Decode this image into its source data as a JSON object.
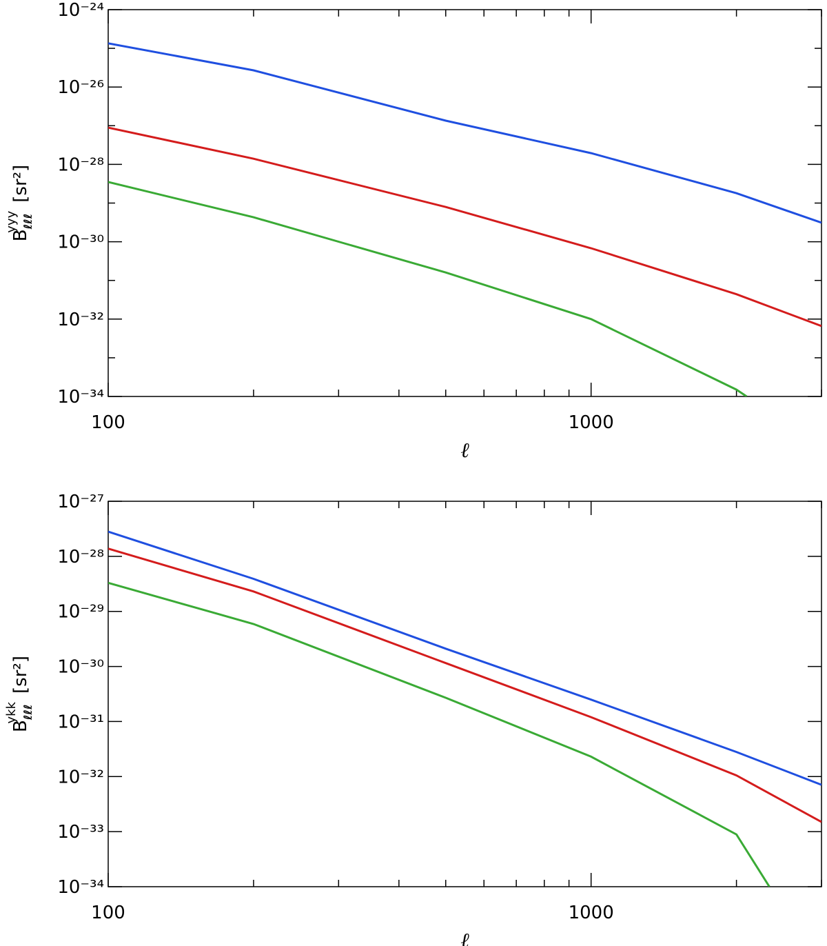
{
  "chart_data": [
    {
      "type": "line",
      "xlabel": "ℓ",
      "ylabel": {
        "base": "B",
        "sup": "yyy",
        "sub": "ℓℓℓ",
        "unit": "[sr²]"
      },
      "xlog": true,
      "ylog": true,
      "xlim": [
        100,
        3000
      ],
      "ylim": [
        1e-34,
        1e-24
      ],
      "xticks": [
        100,
        1000
      ],
      "xminorticks": [
        200,
        300,
        400,
        500,
        600,
        700,
        800,
        900,
        2000,
        3000
      ],
      "yticks": [
        {
          "value": 1e-34,
          "label": "10⁻³⁴"
        },
        {
          "value": 1e-32,
          "label": "10⁻³²"
        },
        {
          "value": 1e-30,
          "label": "10⁻³⁰"
        },
        {
          "value": 1e-28,
          "label": "10⁻²⁸"
        },
        {
          "value": 1e-26,
          "label": "10⁻²⁶"
        },
        {
          "value": 1e-24,
          "label": "10⁻²⁴"
        }
      ],
      "yminorticks": [
        1e-33,
        1e-31,
        1e-29,
        1e-27,
        1e-25
      ],
      "series": [
        {
          "color": "#1f4fe0",
          "x": [
            100,
            200,
            500,
            1000,
            2000,
            3000
          ],
          "values": [
            1.35e-25,
            2.7e-26,
            1.35e-27,
            1.95e-28,
            1.8e-29,
            3.1e-30
          ]
        },
        {
          "color": "#d41c1c",
          "x": [
            100,
            200,
            500,
            1000,
            2000,
            3000
          ],
          "values": [
            8.9e-28,
            1.4e-28,
            7.9e-30,
            6.8e-31,
            4.4e-32,
            6.6e-33
          ]
        },
        {
          "color": "#3aaa35",
          "x": [
            100,
            200,
            500,
            1000,
            2000,
            2100
          ],
          "values": [
            3.5e-29,
            4.3e-30,
            1.6e-31,
            1e-32,
            1.5e-34,
            1e-34
          ]
        }
      ]
    },
    {
      "type": "line",
      "xlabel": "ℓ",
      "ylabel": {
        "base": "B",
        "sup": "ykk",
        "sub": "ℓℓℓ",
        "unit": "[sr²]"
      },
      "xlog": true,
      "ylog": true,
      "xlim": [
        100,
        3000
      ],
      "ylim": [
        1e-34,
        1e-27
      ],
      "xticks": [
        100,
        1000
      ],
      "xminorticks": [
        200,
        300,
        400,
        500,
        600,
        700,
        800,
        900,
        2000,
        3000
      ],
      "yticks": [
        {
          "value": 1e-34,
          "label": "10⁻³⁴"
        },
        {
          "value": 1e-33,
          "label": "10⁻³³"
        },
        {
          "value": 1e-32,
          "label": "10⁻³²"
        },
        {
          "value": 1e-31,
          "label": "10⁻³¹"
        },
        {
          "value": 1e-30,
          "label": "10⁻³⁰"
        },
        {
          "value": 1e-29,
          "label": "10⁻²⁹"
        },
        {
          "value": 1e-28,
          "label": "10⁻²⁸"
        },
        {
          "value": 1e-27,
          "label": "10⁻²⁷"
        }
      ],
      "yminorticks": [],
      "series": [
        {
          "color": "#1f4fe0",
          "x": [
            100,
            200,
            500,
            1000,
            2000,
            3000
          ],
          "values": [
            2.8e-28,
            3.9e-29,
            2.1e-30,
            2.5e-31,
            2.8e-32,
            7.1e-33
          ]
        },
        {
          "color": "#d41c1c",
          "x": [
            100,
            200,
            500,
            1000,
            2000,
            3000
          ],
          "values": [
            1.38e-28,
            2.3e-29,
            1.15e-30,
            1.2e-31,
            1.05e-32,
            1.5e-33
          ]
        },
        {
          "color": "#3aaa35",
          "x": [
            100,
            200,
            500,
            1000,
            2000,
            2340
          ],
          "values": [
            3.3e-29,
            5.9e-30,
            2.7e-31,
            2.3e-32,
            8.9e-34,
            1e-34
          ]
        }
      ]
    }
  ]
}
